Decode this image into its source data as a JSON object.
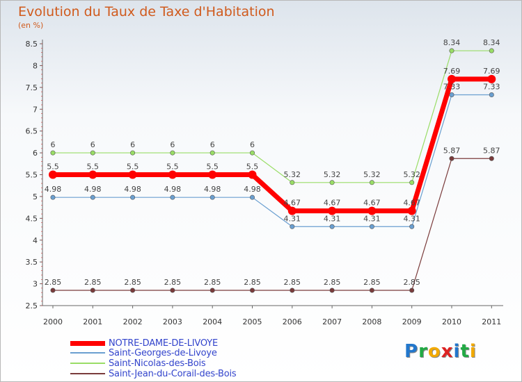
{
  "header": {
    "title": "Evolution du Taux de Taxe d'Habitation",
    "subtitle": "(en %)"
  },
  "chart_data": {
    "type": "line",
    "title": "Evolution du Taux de Taxe d'Habitation",
    "ylabel": "(en %)",
    "xlabel": "",
    "x": [
      "2000",
      "2001",
      "2002",
      "2003",
      "2004",
      "2005",
      "2006",
      "2007",
      "2008",
      "2009",
      "2010",
      "2011"
    ],
    "ylim": [
      2.5,
      8.5
    ],
    "yticks": [
      "2.5",
      "3",
      "3.5",
      "4",
      "4.5",
      "5",
      "5.5",
      "6",
      "6.5",
      "7",
      "7.5",
      "8",
      "8.5"
    ],
    "grid": false,
    "legend": "bottom-left",
    "series": [
      {
        "name": "NOTRE-DAME-DE-LIVOYE",
        "color": "#ff0000",
        "values": [
          5.5,
          5.5,
          5.5,
          5.5,
          5.5,
          5.5,
          4.67,
          4.67,
          4.67,
          4.67,
          7.69,
          7.69
        ],
        "labels": [
          "5.5",
          "5.5",
          "5.5",
          "5.5",
          "5.5",
          "5.5",
          "4.67",
          "4.67",
          "4.67",
          "4.67",
          "7.69",
          "7.69"
        ]
      },
      {
        "name": "Saint-Georges-de-Livoye",
        "color": "#6a9fd0",
        "values": [
          4.98,
          4.98,
          4.98,
          4.98,
          4.98,
          4.98,
          4.31,
          4.31,
          4.31,
          4.31,
          7.33,
          7.33
        ],
        "labels": [
          "4.98",
          "4.98",
          "4.98",
          "4.98",
          "4.98",
          "4.98",
          "4.31",
          "4.31",
          "4.31",
          "4.31",
          "7.33",
          "7.33"
        ]
      },
      {
        "name": "Saint-Nicolas-des-Bois",
        "color": "#99dd66",
        "values": [
          6,
          6,
          6,
          6,
          6,
          6,
          5.32,
          5.32,
          5.32,
          5.32,
          8.34,
          8.34
        ],
        "labels": [
          "6",
          "6",
          "6",
          "6",
          "6",
          "6",
          "5.32",
          "5.32",
          "5.32",
          "5.32",
          "8.34",
          "8.34"
        ]
      },
      {
        "name": "Saint-Jean-du-Corail-des-Bois",
        "color": "#7a3b3b",
        "values": [
          2.85,
          2.85,
          2.85,
          2.85,
          2.85,
          2.85,
          2.85,
          2.85,
          2.85,
          2.85,
          5.87,
          5.87
        ],
        "labels": [
          "2.85",
          "2.85",
          "2.85",
          "2.85",
          "2.85",
          "2.85",
          "2.85",
          "2.85",
          "2.85",
          "2.85",
          "5.87",
          "5.87"
        ]
      }
    ]
  },
  "logo": {
    "letters": [
      "P",
      "r",
      "o",
      "x",
      "i",
      "t",
      "i"
    ],
    "colors": [
      "#2277cc",
      "#22aa44",
      "#f2a900",
      "#dd2222",
      "#2277cc",
      "#22aa44",
      "#f2a900"
    ]
  }
}
